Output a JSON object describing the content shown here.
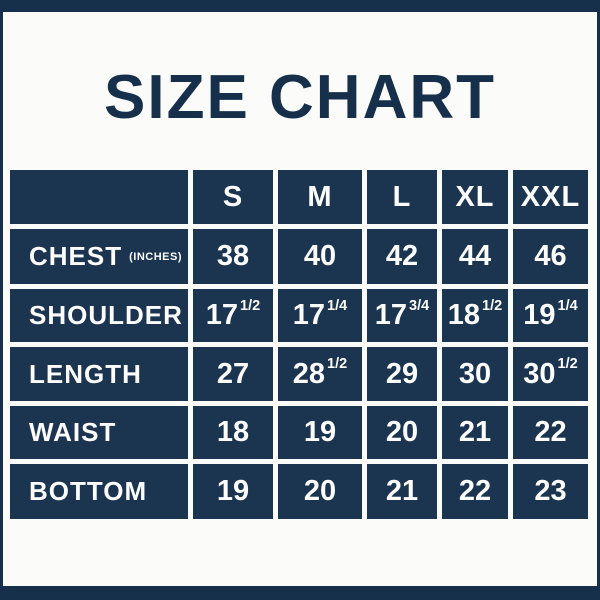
{
  "title": "SIZE CHART",
  "colors": {
    "navy_cell": "#1b3450",
    "navy_frame": "#16304c",
    "background": "#fbfbfa",
    "cell_text": "#fdfdfd"
  },
  "table": {
    "column_headers": [
      "S",
      "M",
      "L",
      "XL",
      "XXL"
    ],
    "rows": [
      {
        "label": "CHEST",
        "sublabel": "(INCHES)",
        "cells": [
          {
            "whole": "38",
            "frac": ""
          },
          {
            "whole": "40",
            "frac": ""
          },
          {
            "whole": "42",
            "frac": ""
          },
          {
            "whole": "44",
            "frac": ""
          },
          {
            "whole": "46",
            "frac": ""
          }
        ]
      },
      {
        "label": "SHOULDER",
        "sublabel": "",
        "cells": [
          {
            "whole": "17",
            "frac": "1/2"
          },
          {
            "whole": "17",
            "frac": "1/4"
          },
          {
            "whole": "17",
            "frac": "3/4"
          },
          {
            "whole": "18",
            "frac": "1/2"
          },
          {
            "whole": "19",
            "frac": "1/4"
          }
        ]
      },
      {
        "label": "LENGTH",
        "sublabel": "",
        "cells": [
          {
            "whole": "27",
            "frac": ""
          },
          {
            "whole": "28",
            "frac": "1/2"
          },
          {
            "whole": "29",
            "frac": ""
          },
          {
            "whole": "30",
            "frac": ""
          },
          {
            "whole": "30",
            "frac": "1/2"
          }
        ]
      },
      {
        "label": "WAIST",
        "sublabel": "",
        "cells": [
          {
            "whole": "18",
            "frac": ""
          },
          {
            "whole": "19",
            "frac": ""
          },
          {
            "whole": "20",
            "frac": ""
          },
          {
            "whole": "21",
            "frac": ""
          },
          {
            "whole": "22",
            "frac": ""
          }
        ]
      },
      {
        "label": "BOTTOM",
        "sublabel": "",
        "cells": [
          {
            "whole": "19",
            "frac": ""
          },
          {
            "whole": "20",
            "frac": ""
          },
          {
            "whole": "21",
            "frac": ""
          },
          {
            "whole": "22",
            "frac": ""
          },
          {
            "whole": "23",
            "frac": ""
          }
        ]
      }
    ]
  },
  "chart_data": {
    "type": "table",
    "title": "SIZE CHART",
    "columns": [
      "S",
      "M",
      "L",
      "XL",
      "XXL"
    ],
    "unit": "INCHES",
    "rows": [
      {
        "label": "CHEST",
        "values": [
          38,
          40,
          42,
          44,
          46
        ]
      },
      {
        "label": "SHOULDER",
        "values": [
          17.5,
          17.25,
          17.75,
          18.5,
          19.25
        ]
      },
      {
        "label": "LENGTH",
        "values": [
          27,
          28.5,
          29,
          30,
          30.5
        ]
      },
      {
        "label": "WAIST",
        "values": [
          18,
          19,
          20,
          21,
          22
        ]
      },
      {
        "label": "BOTTOM",
        "values": [
          19,
          20,
          21,
          22,
          23
        ]
      }
    ]
  }
}
